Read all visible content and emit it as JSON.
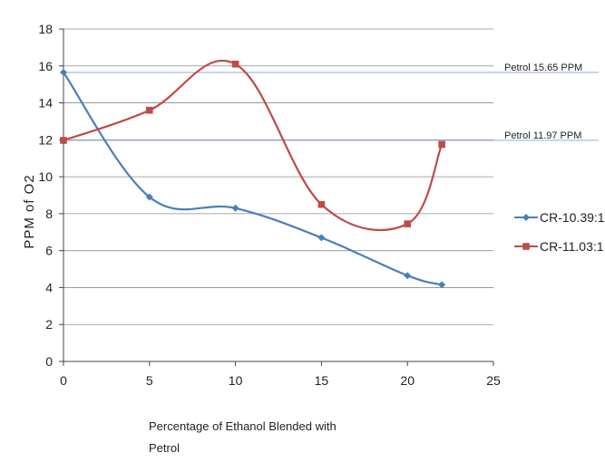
{
  "chart_data": {
    "type": "line",
    "title": "",
    "xlabel": "Percentage of Ethanol Blended with Petrol",
    "ylabel": "PPM of O2",
    "xlim": [
      0,
      25
    ],
    "ylim": [
      0,
      18
    ],
    "xticks": [
      "0",
      "5",
      "10",
      "15",
      "20",
      "25"
    ],
    "yticks": [
      "0",
      "2",
      "4",
      "6",
      "8",
      "10",
      "12",
      "14",
      "16",
      "18"
    ],
    "grid": "horizontal",
    "legend_position": "right",
    "smooth": true,
    "series": [
      {
        "name": "CR-10.39:1",
        "color": "#4a7ebb",
        "marker": "diamond",
        "x": [
          0,
          5,
          10,
          15,
          20,
          22
        ],
        "y": [
          15.65,
          8.9,
          8.3,
          6.7,
          4.65,
          4.15
        ]
      },
      {
        "name": "CR-11.03:1",
        "color": "#be4b48",
        "marker": "square",
        "x": [
          0,
          5,
          10,
          15,
          20,
          22
        ],
        "y": [
          11.97,
          13.6,
          16.1,
          8.5,
          7.45,
          11.75
        ]
      }
    ],
    "reference_lines": [
      {
        "label": "Petrol 15.65 PPM",
        "y": 15.65,
        "color": "#9cb4d4"
      },
      {
        "label": "Petrol 11.97 PPM",
        "y": 11.97,
        "color": "#9cb4d4"
      }
    ]
  }
}
